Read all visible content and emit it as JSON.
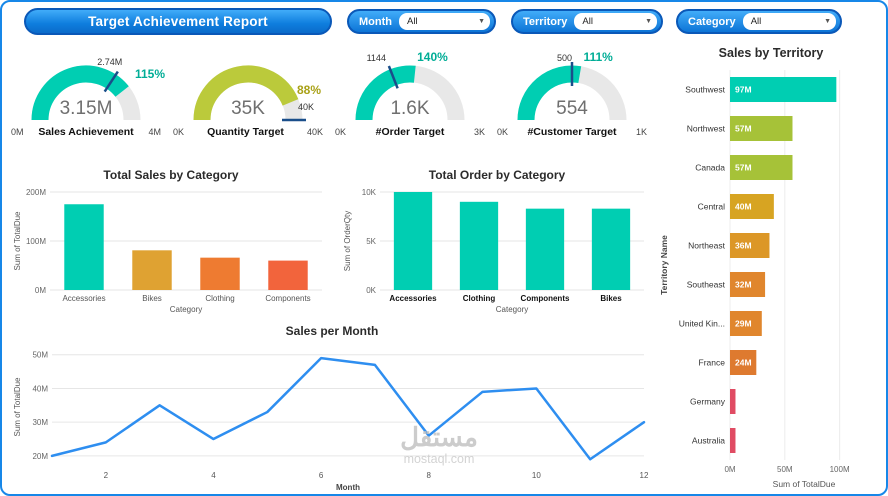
{
  "page": {
    "title": "Target Achievement Report",
    "watermark_line1": "مستقل",
    "watermark_line2": "mostaql.com"
  },
  "slicers": [
    {
      "label": "Month",
      "value": "All"
    },
    {
      "label": "Territory",
      "value": "All"
    },
    {
      "label": "Category",
      "value": "All"
    }
  ],
  "theme": {
    "teal": "#00CEB2",
    "header_blue": "#0E7DDD",
    "line_blue": "#2E8EF0",
    "tick_navy": "#1A4E8A",
    "gridline": "#E6E6E6"
  },
  "chart_data": [
    {
      "type": "gauge",
      "title": "Sales Achievement",
      "value": 3.15,
      "min": 0,
      "max": 4,
      "target": 2.74,
      "value_label": "3.15M",
      "min_label": "0M",
      "max_label": "4M",
      "target_label": "2.74M",
      "percent_label": "115%",
      "arc_color": "#00CEB2",
      "percent_color": "#00AD96"
    },
    {
      "type": "gauge",
      "title": "Quantity Target",
      "value": 35,
      "min": 0,
      "max": 40,
      "target": 40,
      "value_label": "35K",
      "min_label": "0K",
      "max_label": "40K",
      "target_label": "40K",
      "percent_label": "88%",
      "arc_color": "#BBCA3B",
      "percent_color": "#A9A117"
    },
    {
      "type": "gauge",
      "title": "#Order Target",
      "value": 1.6,
      "min": 0,
      "max": 3,
      "target": 1.144,
      "value_label": "1.6K",
      "min_label": "0K",
      "max_label": "3K",
      "target_label": "1144",
      "percent_label": "140%",
      "arc_color": "#00CEB2",
      "percent_color": "#00AD96"
    },
    {
      "type": "gauge",
      "title": "#Customer Target",
      "value": 554,
      "min": 0,
      "max": 1000,
      "target": 500,
      "value_label": "554",
      "min_label": "0K",
      "max_label": "1K",
      "target_label": "500",
      "percent_label": "111%",
      "arc_color": "#00CEB2",
      "percent_color": "#00AD96"
    },
    {
      "type": "bar",
      "title": "Total Sales by Category",
      "xlabel": "Category",
      "ylabel": "Sum of TotalDue",
      "categories": [
        "Accessories",
        "Bikes",
        "Clothing",
        "Components"
      ],
      "values": [
        175,
        81,
        66,
        60
      ],
      "unit": "M",
      "ylim": [
        0,
        200
      ],
      "yticks": [
        {
          "v": 0,
          "label": "0M"
        },
        {
          "v": 100,
          "label": "100M"
        },
        {
          "v": 200,
          "label": "200M"
        }
      ],
      "bar_colors": [
        "#00CEB2",
        "#DFA232",
        "#EE7B31",
        "#F2643C"
      ],
      "bold_x_labels": false
    },
    {
      "type": "bar",
      "title": "Total Order by Category",
      "xlabel": "Category",
      "ylabel": "Sum of OrderQty",
      "categories": [
        "Accessories",
        "Clothing",
        "Components",
        "Bikes"
      ],
      "values": [
        10,
        9,
        8.3,
        8.3
      ],
      "unit": "K",
      "ylim": [
        0,
        10
      ],
      "yticks": [
        {
          "v": 0,
          "label": "0K"
        },
        {
          "v": 5,
          "label": "5K"
        },
        {
          "v": 10,
          "label": "10K"
        }
      ],
      "bar_colors": [
        "#00CEB2",
        "#00CEB2",
        "#00CEB2",
        "#00CEB2"
      ],
      "bold_x_labels": true
    },
    {
      "type": "line",
      "title": "Sales per Month",
      "xlabel": "Month",
      "ylabel": "Sum of TotalDue",
      "x": [
        1,
        2,
        3,
        4,
        5,
        6,
        7,
        8,
        9,
        10,
        11,
        12
      ],
      "values": [
        20,
        24,
        35,
        25,
        33,
        49,
        47,
        26,
        39,
        40,
        19,
        30
      ],
      "unit": "M",
      "ylim": [
        17,
        52
      ],
      "yticks": [
        {
          "v": 20,
          "label": "20M"
        },
        {
          "v": 30,
          "label": "30M"
        },
        {
          "v": 40,
          "label": "40M"
        },
        {
          "v": 50,
          "label": "50M"
        }
      ],
      "xticks": [
        {
          "v": 2,
          "label": "2"
        },
        {
          "v": 4,
          "label": "4"
        },
        {
          "v": 6,
          "label": "6"
        },
        {
          "v": 8,
          "label": "8"
        },
        {
          "v": 10,
          "label": "10"
        },
        {
          "v": 12,
          "label": "12"
        }
      ],
      "line_color": "#2E8EF0"
    },
    {
      "type": "hbar",
      "title": "Sales by Territory",
      "xlabel": "Sum of TotalDue",
      "ylabel": "Territory Name",
      "categories": [
        "Southwest",
        "Northwest",
        "Canada",
        "Central",
        "Northeast",
        "Southeast",
        "United Kin...",
        "France",
        "Germany",
        "Australia"
      ],
      "values": [
        97,
        57,
        57,
        40,
        36,
        32,
        29,
        24,
        5,
        5
      ],
      "value_labels": [
        "97M",
        "57M",
        "57M",
        "40M",
        "36M",
        "32M",
        "29M",
        "24M",
        "",
        ""
      ],
      "unit": "M",
      "xlim": [
        0,
        135
      ],
      "xticks": [
        {
          "v": 0,
          "label": "0M"
        },
        {
          "v": 50,
          "label": "50M"
        },
        {
          "v": 100,
          "label": "100M"
        }
      ],
      "bar_colors": [
        "#00CEB2",
        "#A6C238",
        "#A6C238",
        "#D7A422",
        "#DC9727",
        "#E0862D",
        "#E0862D",
        "#DE7A2F",
        "#E04B63",
        "#E04B63"
      ]
    }
  ]
}
